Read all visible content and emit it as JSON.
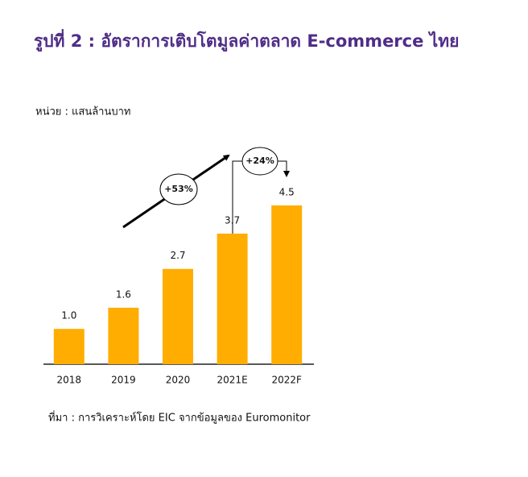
{
  "chart_data": {
    "type": "bar",
    "title": "รูปที่ 2 :  อัตราการเติบโตมูลค่าตลาด E-commerce ไทย",
    "subtitle": "หน่วย : แสนล้านบาท",
    "source": "ที่มา : การวิเคราะห์โดย EIC จากข้อมูลของ Euromonitor",
    "categories": [
      "2018",
      "2019",
      "2020",
      "2021E",
      "2022F"
    ],
    "values": [
      1.0,
      1.6,
      2.7,
      3.7,
      4.5
    ],
    "value_labels": [
      "1.0",
      "1.6",
      "2.7",
      "3.7",
      "4.5"
    ],
    "color": "#ffad00",
    "ylim": [
      0,
      5
    ],
    "annotations": [
      "+53%",
      "+24%"
    ]
  }
}
